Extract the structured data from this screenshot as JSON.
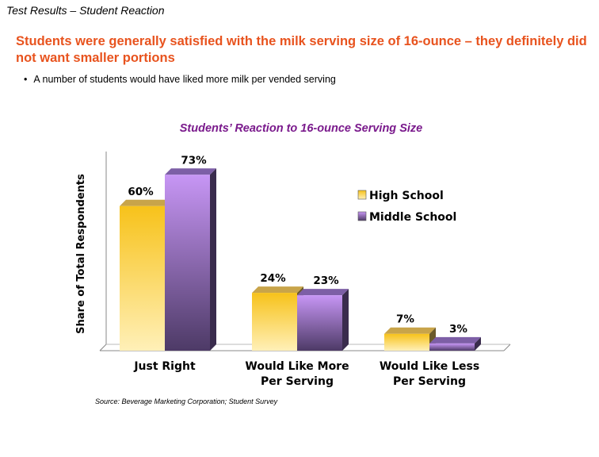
{
  "header": {
    "section_label": "Test Results – Student Reaction",
    "headline": "Students were generally satisfied with the milk serving size of 16-ounce – they definitely did not want smaller portions",
    "bullet": "A number of students would have liked more milk per vended serving"
  },
  "colors": {
    "headline": "#e8531e",
    "chart_title": "#7a1a8c",
    "high_school": "#f5c518",
    "middle_school": "#b583e8"
  },
  "chart_data": {
    "type": "bar",
    "title": "Students’ Reaction to 16-ounce Serving Size",
    "xlabel": "",
    "ylabel": "Share of Total Respondents",
    "ylim": [
      0,
      80
    ],
    "categories": [
      [
        "Just Right"
      ],
      [
        "Would Like More",
        "Per Serving"
      ],
      [
        "Would Like Less",
        "Per Serving"
      ]
    ],
    "series": [
      {
        "name": "High School",
        "values": [
          60,
          24,
          7
        ],
        "labels": [
          "60%",
          "24%",
          "7%"
        ]
      },
      {
        "name": "Middle School",
        "values": [
          73,
          23,
          3
        ],
        "labels": [
          "73%",
          "23%",
          "3%"
        ]
      }
    ],
    "legend_position": "right",
    "source": "Source: Beverage Marketing Corporation; Student Survey"
  }
}
